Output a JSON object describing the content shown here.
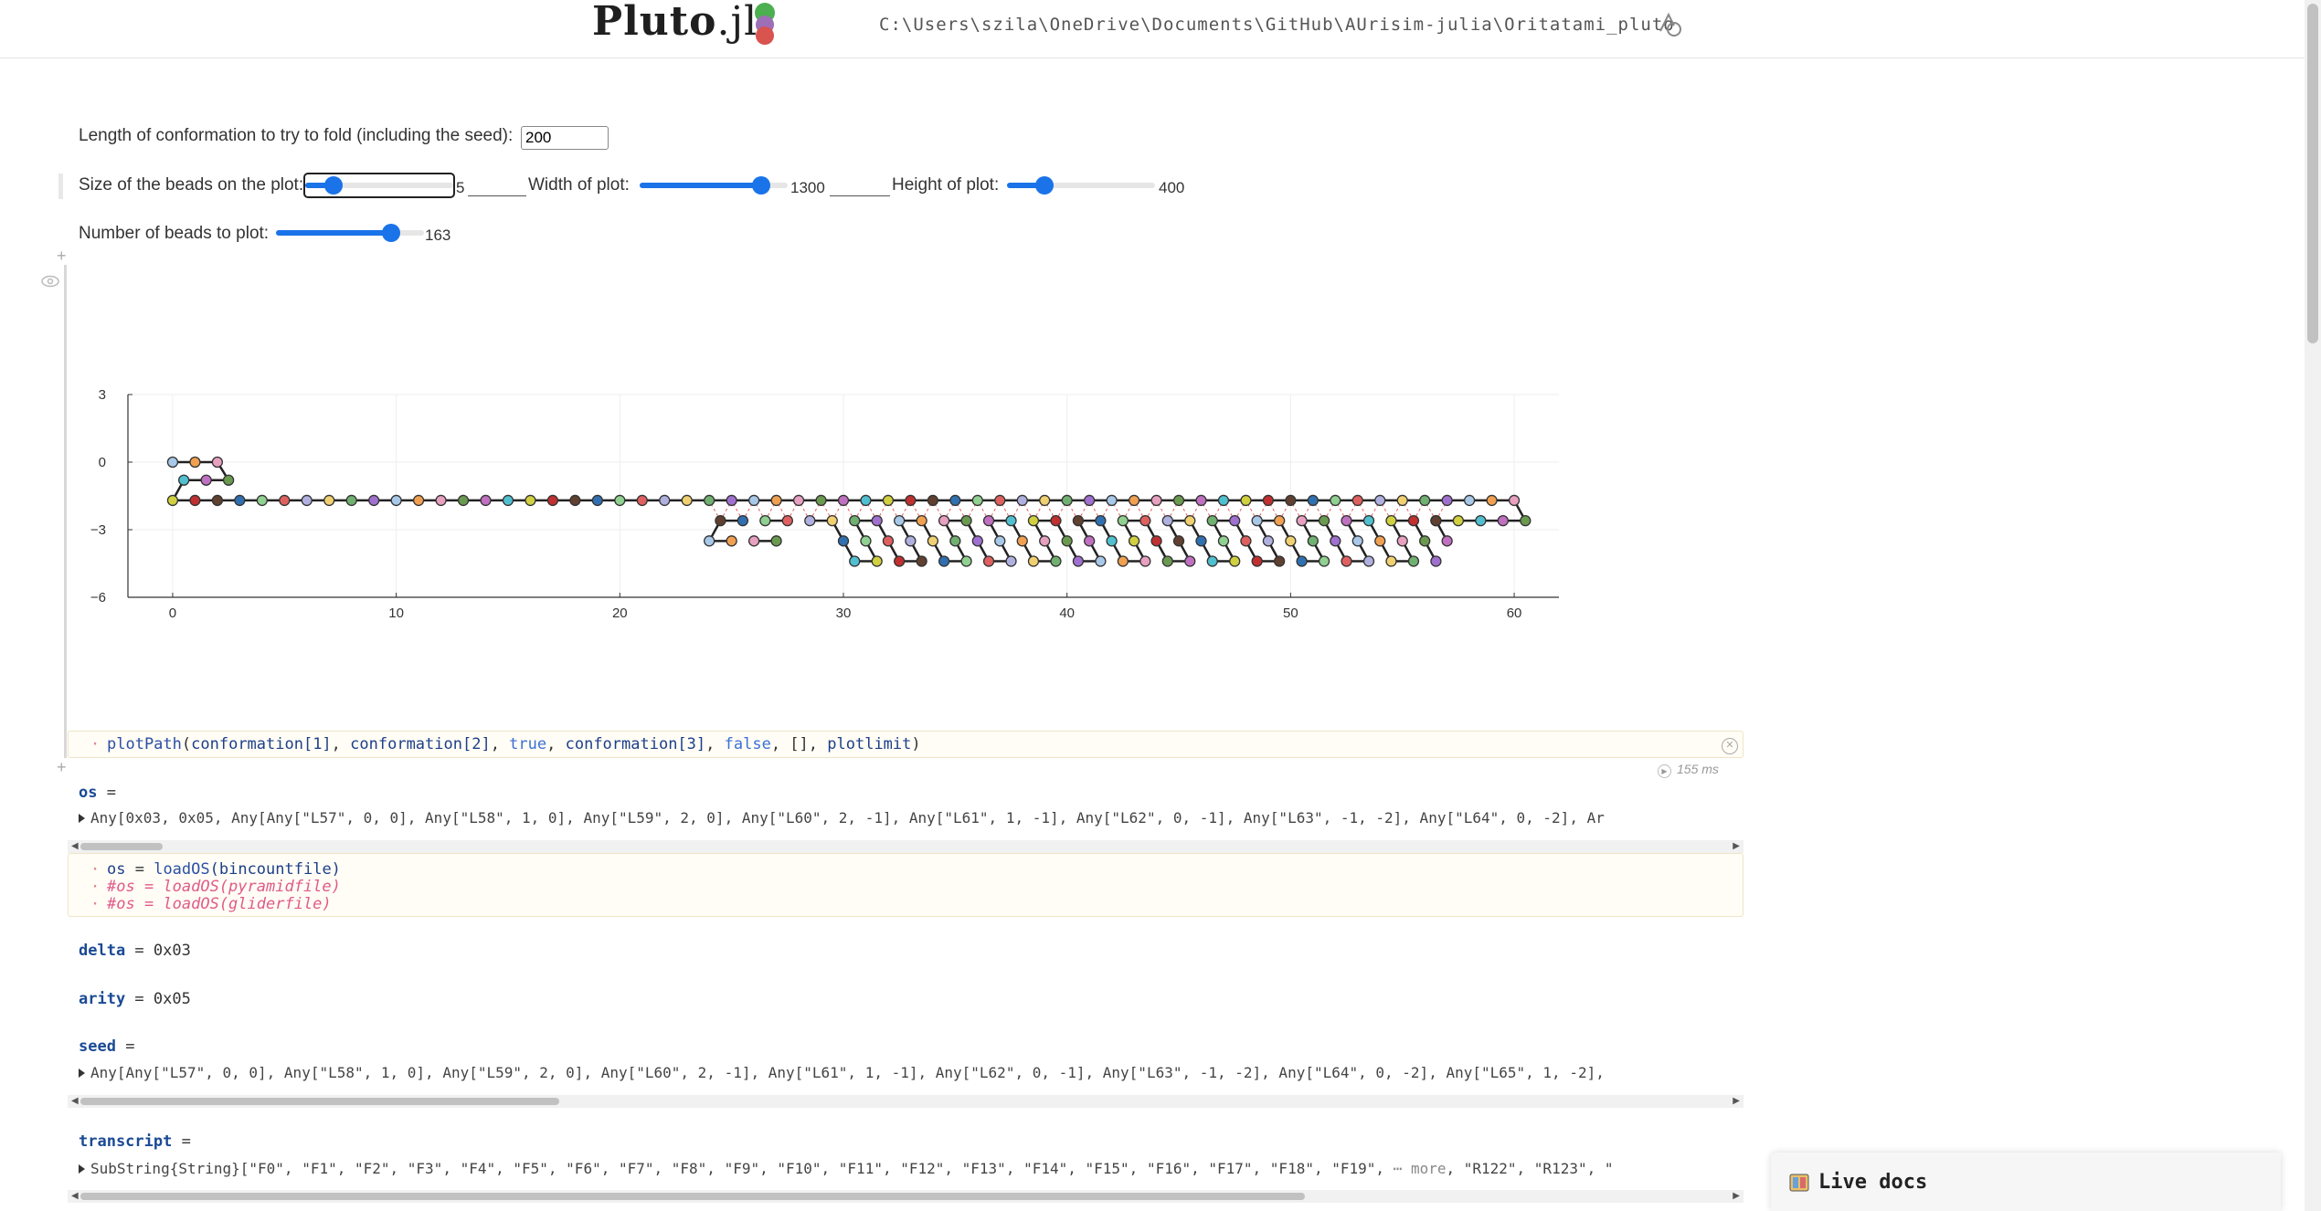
{
  "header": {
    "logo_main": "Pluto",
    "logo_suffix": ".jl",
    "file_path": "C:\\Users\\szila\\OneDrive\\Documents\\GitHub\\AUrisim-julia\\Oritatami_pluto"
  },
  "inputs": {
    "length_label": "Length of conformation to try to fold (including the seed):",
    "length_value": "200",
    "bead_size_label": "Size of the beads on the plot:",
    "bead_size_value": "5",
    "bead_size_fraction": 0.19,
    "width_label": "Width of plot:",
    "width_value": "1300",
    "width_fraction": 0.82,
    "height_label": "Height of plot:",
    "height_value": "400",
    "height_fraction": 0.25,
    "beads_label": "Number of beads to plot:",
    "beads_value": "163",
    "beads_fraction": 0.78
  },
  "chart_data": {
    "type": "scatter",
    "description_of_marks": "bead path with bonds",
    "x_ticks": [
      "0",
      "10",
      "20",
      "30",
      "40",
      "50",
      "60"
    ],
    "y_ticks": [
      "3",
      "0",
      "−3",
      "−6"
    ],
    "xlim": [
      -2,
      62
    ],
    "ylim": [
      -6,
      3
    ],
    "grid": true,
    "bead_colors": [
      "#a8c8e8",
      "#f0a050",
      "#e8a0c0",
      "#6a9a50",
      "#c070c0",
      "#50c0d0",
      "#d0d040",
      "#c03030",
      "#604030",
      "#3070b0",
      "#90d090",
      "#e06060",
      "#b0b0e0",
      "#f0d070",
      "#70b070",
      "#a070d0"
    ],
    "path_points": [
      [
        0,
        0
      ],
      [
        1,
        0
      ],
      [
        2,
        0
      ],
      [
        2.5,
        -0.8
      ],
      [
        1.5,
        -0.8
      ],
      [
        0.5,
        -0.8
      ],
      [
        0,
        -1.7
      ],
      [
        1,
        -1.7
      ],
      [
        2,
        -1.7
      ],
      [
        3,
        -1.7
      ],
      [
        4,
        -1.7
      ],
      [
        5,
        -1.7
      ],
      [
        6,
        -1.7
      ],
      [
        7,
        -1.7
      ],
      [
        8,
        -1.7
      ],
      [
        9,
        -1.7
      ],
      [
        10,
        -1.7
      ],
      [
        11,
        -1.7
      ],
      [
        12,
        -1.7
      ],
      [
        13,
        -1.7
      ],
      [
        14,
        -1.7
      ],
      [
        15,
        -1.7
      ],
      [
        16,
        -1.7
      ],
      [
        17,
        -1.7
      ],
      [
        18,
        -1.7
      ],
      [
        19,
        -1.7
      ],
      [
        20,
        -1.7
      ],
      [
        21,
        -1.7
      ],
      [
        22,
        -1.7
      ],
      [
        23,
        -1.7
      ],
      [
        24,
        -1.7
      ],
      [
        25,
        -1.7
      ],
      [
        26,
        -1.7
      ],
      [
        27,
        -1.7
      ],
      [
        28,
        -1.7
      ],
      [
        29,
        -1.7
      ],
      [
        30,
        -1.7
      ],
      [
        31,
        -1.7
      ],
      [
        32,
        -1.7
      ],
      [
        33,
        -1.7
      ],
      [
        34,
        -1.7
      ],
      [
        35,
        -1.7
      ],
      [
        36,
        -1.7
      ],
      [
        37,
        -1.7
      ],
      [
        38,
        -1.7
      ],
      [
        39,
        -1.7
      ],
      [
        40,
        -1.7
      ],
      [
        41,
        -1.7
      ],
      [
        42,
        -1.7
      ],
      [
        43,
        -1.7
      ],
      [
        44,
        -1.7
      ],
      [
        45,
        -1.7
      ],
      [
        46,
        -1.7
      ],
      [
        47,
        -1.7
      ],
      [
        48,
        -1.7
      ],
      [
        49,
        -1.7
      ],
      [
        50,
        -1.7
      ],
      [
        51,
        -1.7
      ],
      [
        52,
        -1.7
      ],
      [
        53,
        -1.7
      ],
      [
        54,
        -1.7
      ],
      [
        55,
        -1.7
      ],
      [
        56,
        -1.7
      ],
      [
        57,
        -1.7
      ],
      [
        58,
        -1.7
      ],
      [
        59,
        -1.7
      ],
      [
        60,
        -1.7
      ],
      [
        60.5,
        -2.6
      ],
      [
        59.5,
        -2.6
      ],
      [
        58.5,
        -2.6
      ],
      [
        57.5,
        -2.6
      ],
      [
        56.5,
        -2.6
      ]
    ],
    "lower_rows": {
      "row_a_x_start": 24.5,
      "row_a_x_end": 56.5,
      "row_a_y": -2.6,
      "row_b_x_start": 30,
      "row_b_x_end": 57,
      "row_b_y": -3.5,
      "row_c_x_start": 30.5,
      "row_c_x_end": 56.5,
      "row_c_y": -4.4,
      "left_cluster_x": [
        24,
        25,
        26,
        27
      ],
      "left_cluster_y": -3.5
    }
  },
  "code_cells": {
    "plot_call": {
      "fn": "plotPath",
      "args": [
        "conformation[1]",
        ", ",
        "conformation[2]",
        ", ",
        "true",
        ", ",
        "conformation[3]",
        ", ",
        "false",
        ", ",
        "[]",
        ", ",
        "plotlimit"
      ],
      "timing": "155 ms"
    },
    "os_def": {
      "line1_lhs": "os",
      "line1_eq": " = ",
      "line1_fn": "loadOS",
      "line1_arg": "(bincountfile)",
      "line2": "#os = loadOS(pyramidfile)",
      "line3": "#os = loadOS(gliderfile)"
    }
  },
  "outputs": {
    "os_name": "os",
    "os_eq": " =",
    "os_value": "Any[0x03,  0x05,  Any[Any[\"L57\",  0,  0],  Any[\"L58\",  1,  0],  Any[\"L59\",  2,  0],  Any[\"L60\",  2,  -1],  Any[\"L61\",  1,  -1],  Any[\"L62\",  0,  -1],  Any[\"L63\",  -1,  -2],  Any[\"L64\",  0,  -2],  Ar",
    "delta_name": "delta",
    "delta_value": "0x03",
    "arity_name": "arity",
    "arity_value": "0x05",
    "seed_name": "seed",
    "seed_value": "Any[Any[\"L57\",  0,  0],  Any[\"L58\",  1,  0],  Any[\"L59\",  2,  0],  Any[\"L60\",  2,  -1],  Any[\"L61\",  1,  -1],  Any[\"L62\",  0,  -1],  Any[\"L63\",  -1,  -2],  Any[\"L64\",  0,  -2],  Any[\"L65\",  1,  -2],",
    "transcript_name": "transcript",
    "transcript_value": "SubString{String}[\"F0\",  \"F1\",  \"F2\",  \"F3\",  \"F4\",  \"F5\",  \"F6\",  \"F7\",  \"F8\",  \"F9\",  \"F10\",  \"F11\",  \"F12\",  \"F13\",  \"F14\",  \"F15\",  \"F16\",  \"F17\",  \"F18\",  \"F19\",",
    "transcript_more": "⋯ more",
    "transcript_tail": ", \"R122\",  \"R123\",  \""
  },
  "live_docs": {
    "label": "Live docs"
  },
  "icons": {
    "share": "share-icon",
    "eye": "eye-icon",
    "close": "close-icon",
    "add": "add-cell-icon",
    "docs": "book-icon"
  }
}
